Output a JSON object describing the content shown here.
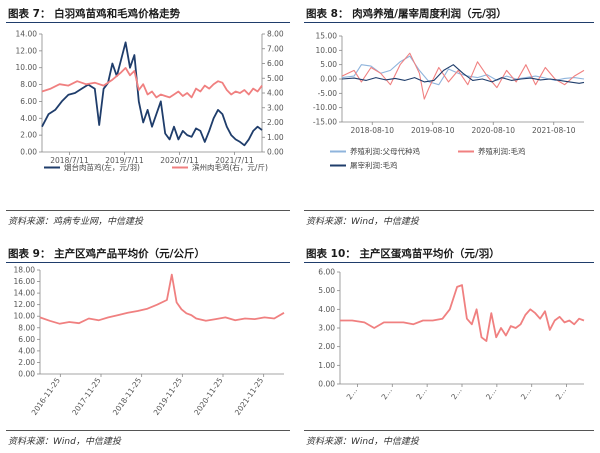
{
  "charts": [
    {
      "id": "fig7",
      "title_label": "图表 7：",
      "title": "白羽鸡苗鸡和毛鸡价格走势",
      "source": "资料来源：鸡病专业网，中信建投",
      "chart_data": {
        "type": "line",
        "title": "白羽鸡苗鸡和毛鸡价格走势",
        "x_ticks": [
          "2018/7/11",
          "2019/7/11",
          "2020/7/11",
          "2021/7/11"
        ],
        "y_left": {
          "lim": [
            0,
            14
          ],
          "ticks": [
            "0.00",
            "2.00",
            "4.00",
            "6.00",
            "8.00",
            "10.00",
            "12.00",
            "14.00"
          ]
        },
        "y_right": {
          "lim": [
            0,
            8
          ],
          "ticks": [
            "0.00",
            "1.00",
            "2.00",
            "3.00",
            "4.00",
            "5.00",
            "6.00",
            "7.00",
            "8.00"
          ]
        },
        "series": [
          {
            "name": "烟台肉苗鸡(左，元/羽)",
            "axis": "left",
            "color": "#1f3d6b",
            "x": [
              0,
              0.03,
              0.06,
              0.09,
              0.12,
              0.15,
              0.18,
              0.21,
              0.24,
              0.26,
              0.28,
              0.3,
              0.32,
              0.34,
              0.36,
              0.38,
              0.4,
              0.42,
              0.44,
              0.46,
              0.48,
              0.5,
              0.52,
              0.54,
              0.56,
              0.58,
              0.6,
              0.62,
              0.64,
              0.66,
              0.68,
              0.7,
              0.72,
              0.74,
              0.76,
              0.78,
              0.8,
              0.82,
              0.84,
              0.86,
              0.88,
              0.9,
              0.92,
              0.94,
              0.96,
              0.98,
              1.0
            ],
            "values": [
              3.0,
              4.5,
              5.0,
              6.0,
              6.8,
              7.0,
              7.5,
              8.0,
              7.5,
              3.2,
              7.5,
              8.2,
              10.5,
              9.0,
              11.0,
              13.0,
              10.0,
              11.5,
              6.0,
              3.5,
              5.0,
              3.0,
              4.5,
              6.0,
              2.2,
              1.5,
              3.0,
              1.5,
              2.5,
              2.0,
              1.8,
              2.8,
              2.5,
              1.2,
              2.5,
              4.0,
              5.0,
              4.5,
              3.0,
              2.0,
              1.5,
              1.2,
              0.8,
              1.5,
              2.5,
              3.0,
              2.6
            ]
          },
          {
            "name": "滨州肉毛鸡(右，元/斤)",
            "axis": "right",
            "color": "#f08080",
            "x": [
              0,
              0.04,
              0.08,
              0.12,
              0.16,
              0.2,
              0.24,
              0.28,
              0.32,
              0.36,
              0.38,
              0.4,
              0.42,
              0.44,
              0.46,
              0.48,
              0.5,
              0.52,
              0.54,
              0.56,
              0.58,
              0.6,
              0.62,
              0.64,
              0.66,
              0.68,
              0.7,
              0.72,
              0.74,
              0.76,
              0.78,
              0.8,
              0.82,
              0.84,
              0.86,
              0.88,
              0.9,
              0.92,
              0.94,
              0.96,
              0.98,
              1.0
            ],
            "values": [
              4.1,
              4.3,
              4.6,
              4.5,
              4.8,
              4.6,
              4.7,
              4.5,
              4.9,
              5.4,
              5.7,
              5.2,
              5.5,
              4.2,
              4.6,
              3.9,
              4.1,
              3.7,
              3.9,
              3.8,
              3.7,
              3.9,
              4.1,
              3.8,
              4.0,
              3.7,
              4.3,
              4.1,
              4.5,
              4.3,
              4.6,
              4.8,
              4.7,
              4.2,
              3.9,
              4.1,
              4.0,
              4.2,
              3.9,
              4.3,
              4.1,
              4.5
            ]
          }
        ],
        "legend": "bottom"
      }
    },
    {
      "id": "fig8",
      "title_label": "图表 8：",
      "title": "肉鸡养殖/屠宰周度利润（元/羽）",
      "source": "资料来源：Wind，中信建投",
      "chart_data": {
        "type": "line",
        "title": "肉鸡养殖/屠宰周度利润（元/羽）",
        "x_ticks": [
          "2018-08-10",
          "2019-08-10",
          "2020-08-10",
          "2021-08-10"
        ],
        "y_left": {
          "lim": [
            -15,
            15
          ],
          "ticks": [
            "-15.00",
            "-10.00",
            "-5.00",
            "0.00",
            "5.00",
            "10.00",
            "15.00"
          ]
        },
        "series": [
          {
            "name": "养殖利润:父母代种鸡",
            "color": "#8fb4dc",
            "x": [
              0,
              0.05,
              0.08,
              0.12,
              0.16,
              0.2,
              0.24,
              0.28,
              0.32,
              0.36,
              0.4,
              0.44,
              0.48,
              0.52,
              0.56,
              0.6,
              0.64,
              0.68,
              0.72,
              0.76,
              0.8,
              0.84,
              0.88,
              0.92,
              0.96,
              1.0
            ],
            "values": [
              0.5,
              1.0,
              5.0,
              4.5,
              2.0,
              3.0,
              6.0,
              8.0,
              3.0,
              -1.0,
              -2.0,
              3.5,
              2.0,
              1.0,
              0.5,
              1.5,
              -0.5,
              1.0,
              0.0,
              0.5,
              1.0,
              0.3,
              -0.5,
              0.2,
              0.5,
              0.0
            ]
          },
          {
            "name": "养殖利润:毛鸡",
            "color": "#f08080",
            "x": [
              0,
              0.05,
              0.08,
              0.12,
              0.16,
              0.2,
              0.24,
              0.28,
              0.32,
              0.34,
              0.36,
              0.4,
              0.44,
              0.48,
              0.52,
              0.56,
              0.6,
              0.64,
              0.68,
              0.72,
              0.76,
              0.8,
              0.84,
              0.88,
              0.92,
              0.96,
              1.0
            ],
            "values": [
              1.0,
              3.0,
              -1.0,
              4.0,
              2.0,
              -2.0,
              5.0,
              9.0,
              2.0,
              -7.0,
              -3.0,
              4.0,
              -1.0,
              3.0,
              -2.0,
              6.0,
              1.0,
              -3.0,
              3.0,
              -1.0,
              5.0,
              -2.0,
              4.0,
              0.0,
              -2.0,
              1.0,
              3.0
            ]
          },
          {
            "name": "屠宰利润:毛鸡",
            "color": "#1f3d6b",
            "x": [
              0,
              0.05,
              0.1,
              0.14,
              0.18,
              0.22,
              0.26,
              0.3,
              0.34,
              0.38,
              0.42,
              0.46,
              0.5,
              0.54,
              0.58,
              0.62,
              0.66,
              0.7,
              0.74,
              0.78,
              0.82,
              0.86,
              0.9,
              0.94,
              0.98,
              1.0
            ],
            "values": [
              0.0,
              0.3,
              -0.5,
              0.5,
              -0.3,
              0.2,
              -0.5,
              0.5,
              -1.0,
              -0.5,
              3.0,
              5.0,
              2.0,
              -0.5,
              0.0,
              -1.0,
              0.5,
              -0.5,
              0.0,
              0.3,
              -0.3,
              0.0,
              -0.5,
              -1.0,
              -1.5,
              -1.2
            ]
          }
        ],
        "legend": "bottom"
      }
    },
    {
      "id": "fig9",
      "title_label": "图表 9：",
      "title": "主产区鸡产品平均价（元/公斤）",
      "source": "资料来源：Wind，中信建投",
      "chart_data": {
        "type": "line",
        "title": "主产区鸡产品平均价（元/公斤）",
        "x_ticks": [
          "2016-11-25",
          "2017-11-25",
          "2018-11-25",
          "2019-11-25",
          "2020-11-25",
          "2021-11-25"
        ],
        "y_left": {
          "lim": [
            0,
            18
          ],
          "ticks": [
            "0.00",
            "2.00",
            "4.00",
            "6.00",
            "8.00",
            "10.00",
            "12.00",
            "14.00",
            "16.00",
            "18.00"
          ]
        },
        "series": [
          {
            "name": "",
            "color": "#f08080",
            "x": [
              0,
              0.04,
              0.08,
              0.12,
              0.16,
              0.2,
              0.24,
              0.28,
              0.32,
              0.36,
              0.4,
              0.44,
              0.48,
              0.52,
              0.54,
              0.56,
              0.58,
              0.6,
              0.62,
              0.64,
              0.68,
              0.72,
              0.76,
              0.8,
              0.84,
              0.88,
              0.92,
              0.96,
              1.0
            ],
            "values": [
              9.8,
              9.2,
              8.7,
              9.0,
              8.8,
              9.6,
              9.3,
              9.8,
              10.2,
              10.6,
              10.9,
              11.3,
              12.0,
              12.8,
              17.2,
              12.4,
              11.2,
              10.5,
              10.2,
              9.6,
              9.2,
              9.5,
              9.8,
              9.3,
              9.6,
              9.5,
              9.8,
              9.6,
              10.6
            ]
          }
        ]
      }
    },
    {
      "id": "fig10",
      "title_label": "图表 10：",
      "title": "主产区蛋鸡苗平均价（元/羽）",
      "source": "资料来源：Wind，中信建投",
      "chart_data": {
        "type": "line",
        "title": "主产区蛋鸡苗平均价（元/羽）",
        "x_ticks": [
          "2…",
          "2…",
          "2…",
          "2…",
          "2…",
          "2…",
          "2…"
        ],
        "y_left": {
          "lim": [
            0,
            6
          ],
          "ticks": [
            "0.00",
            "1.00",
            "2.00",
            "3.00",
            "4.00",
            "5.00",
            "6.00"
          ]
        },
        "series": [
          {
            "name": "",
            "color": "#f08080",
            "x": [
              0,
              0.05,
              0.1,
              0.14,
              0.18,
              0.22,
              0.26,
              0.3,
              0.34,
              0.38,
              0.42,
              0.45,
              0.48,
              0.5,
              0.52,
              0.54,
              0.56,
              0.58,
              0.6,
              0.62,
              0.64,
              0.66,
              0.68,
              0.7,
              0.72,
              0.74,
              0.76,
              0.78,
              0.8,
              0.82,
              0.84,
              0.86,
              0.88,
              0.9,
              0.92,
              0.94,
              0.96,
              0.98,
              1.0
            ],
            "values": [
              3.4,
              3.4,
              3.3,
              3.0,
              3.3,
              3.3,
              3.3,
              3.2,
              3.4,
              3.4,
              3.5,
              4.0,
              5.2,
              5.3,
              3.5,
              3.2,
              4.0,
              2.5,
              2.3,
              3.8,
              2.5,
              3.0,
              2.6,
              3.1,
              3.0,
              3.2,
              3.7,
              4.0,
              3.8,
              3.5,
              3.9,
              2.9,
              3.4,
              3.6,
              3.3,
              3.4,
              3.2,
              3.5,
              3.4
            ]
          }
        ]
      }
    }
  ]
}
